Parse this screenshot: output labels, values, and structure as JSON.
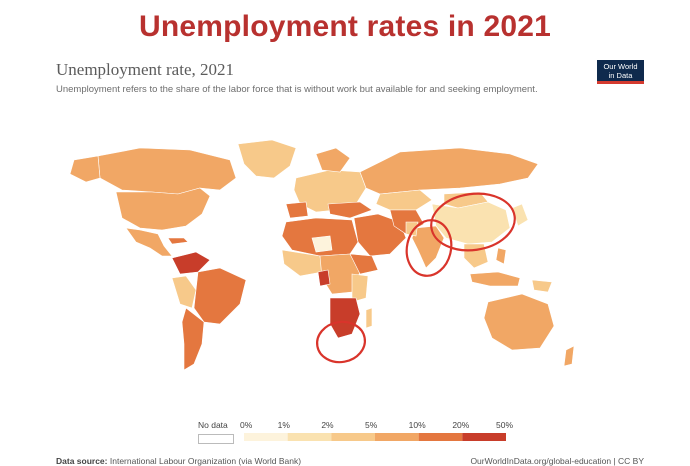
{
  "banner": {
    "title": "Unemployment rates in 2021"
  },
  "chart": {
    "title": "Unemployment rate, 2021",
    "subtitle": "Unemployment refers to the share of the labor force that is without work but available for and seeking employment."
  },
  "logo": {
    "line1": "Our World",
    "line2": "in Data"
  },
  "legend": {
    "no_data_label": "No data",
    "ticks": [
      "0%",
      "1%",
      "2%",
      "5%",
      "10%",
      "20%",
      "50%"
    ],
    "colors": [
      "#fdf3dc",
      "#fae2b0",
      "#f7c98a",
      "#f1a765",
      "#e4773f",
      "#c83d2a"
    ],
    "no_data_color": "#ffffff"
  },
  "footer": {
    "source_label": "Data source:",
    "source_value": "International Labour Organization (via World Bank)",
    "url": "OurWorldInData.org/global-education | CC BY"
  },
  "colors": {
    "banner": "#b8312f",
    "annotation": "#d9342b",
    "map_base": "#f2ac6e"
  },
  "annotations": [
    "circle-around-china",
    "circle-around-india",
    "circle-around-southern-africa"
  ]
}
